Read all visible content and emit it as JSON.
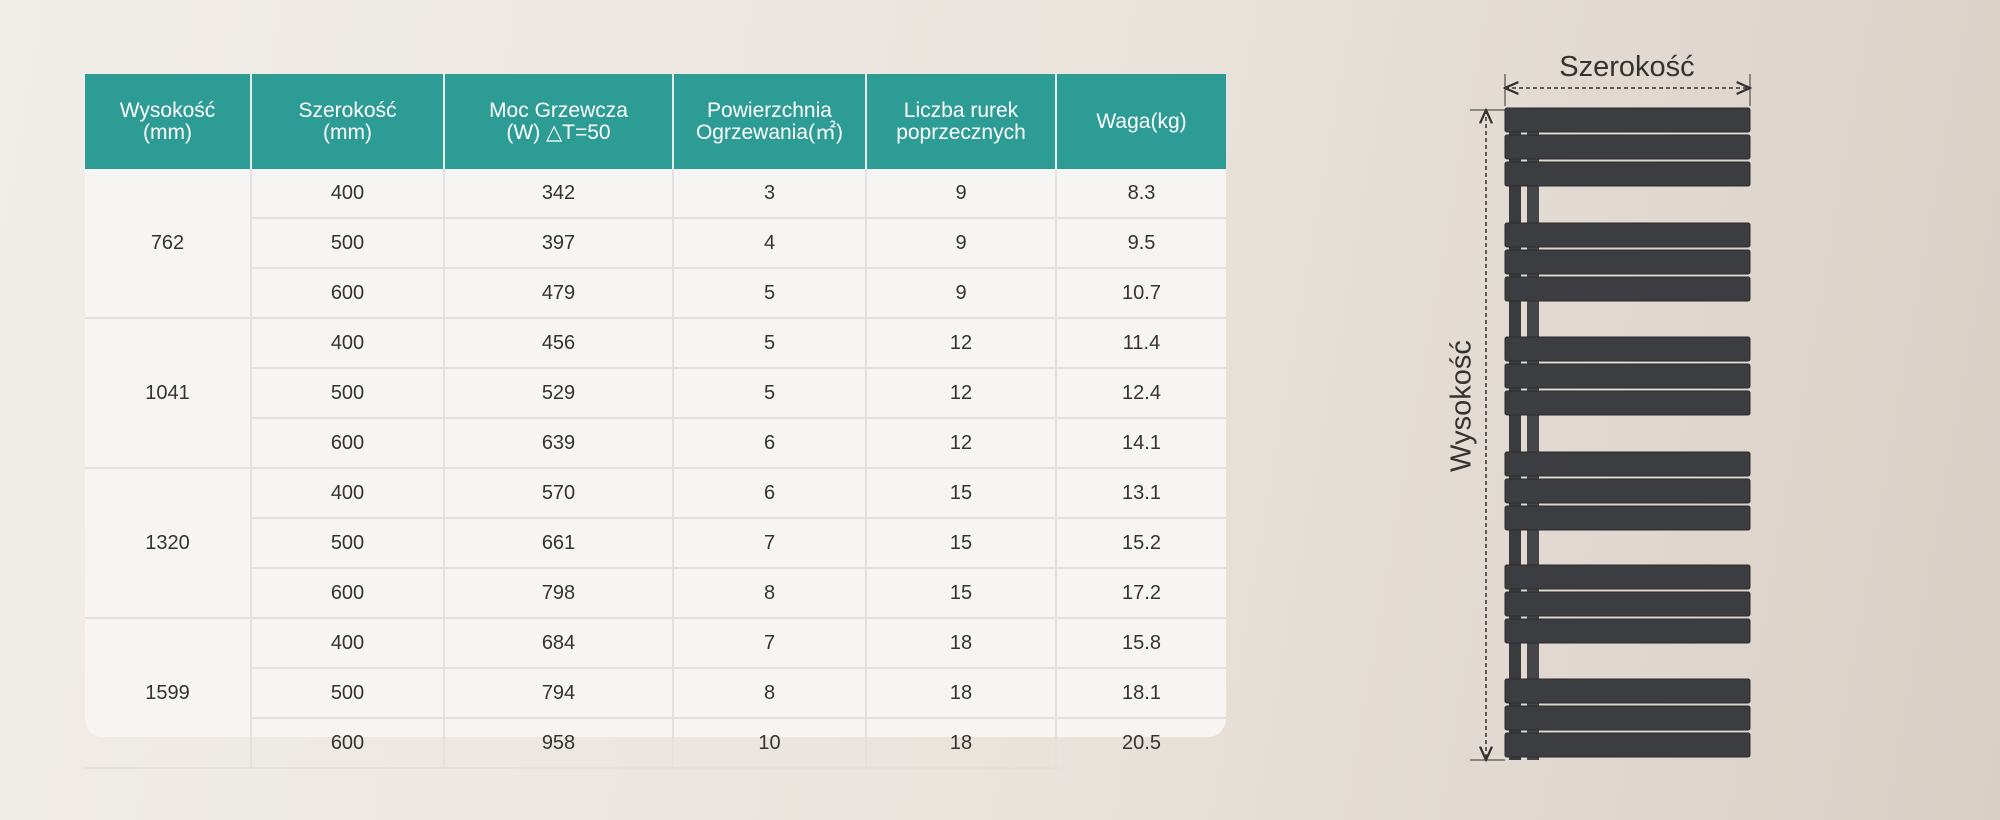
{
  "table": {
    "header": [
      [
        "Wysokość",
        "(mm)"
      ],
      [
        "Szerokość",
        "(mm)"
      ],
      [
        "Moc Grzewcza",
        "(W) △T=50"
      ],
      [
        "Powierzchnia",
        "Ogrzewania(㎡)"
      ],
      [
        "Liczba rurek",
        "poprzecznych"
      ],
      [
        "Waga(kg)"
      ]
    ],
    "groups": [
      {
        "height": "762",
        "rows": [
          [
            "400",
            "342",
            "3",
            "9",
            "8.3"
          ],
          [
            "500",
            "397",
            "4",
            "9",
            "9.5"
          ],
          [
            "600",
            "479",
            "5",
            "9",
            "10.7"
          ]
        ]
      },
      {
        "height": "1041",
        "rows": [
          [
            "400",
            "456",
            "5",
            "12",
            "11.4"
          ],
          [
            "500",
            "529",
            "5",
            "12",
            "12.4"
          ],
          [
            "600",
            "639",
            "6",
            "12",
            "14.1"
          ]
        ]
      },
      {
        "height": "1320",
        "rows": [
          [
            "400",
            "570",
            "6",
            "15",
            "13.1"
          ],
          [
            "500",
            "661",
            "7",
            "15",
            "15.2"
          ],
          [
            "600",
            "798",
            "8",
            "15",
            "17.2"
          ]
        ]
      },
      {
        "height": "1599",
        "rows": [
          [
            "400",
            "684",
            "7",
            "18",
            "15.8"
          ],
          [
            "500",
            "794",
            "8",
            "18",
            "18.1"
          ],
          [
            "600",
            "958",
            "10",
            "18",
            "20.5"
          ]
        ]
      }
    ]
  },
  "diagram": {
    "width_label": "Szerokość",
    "height_label": "Wysokość"
  }
}
